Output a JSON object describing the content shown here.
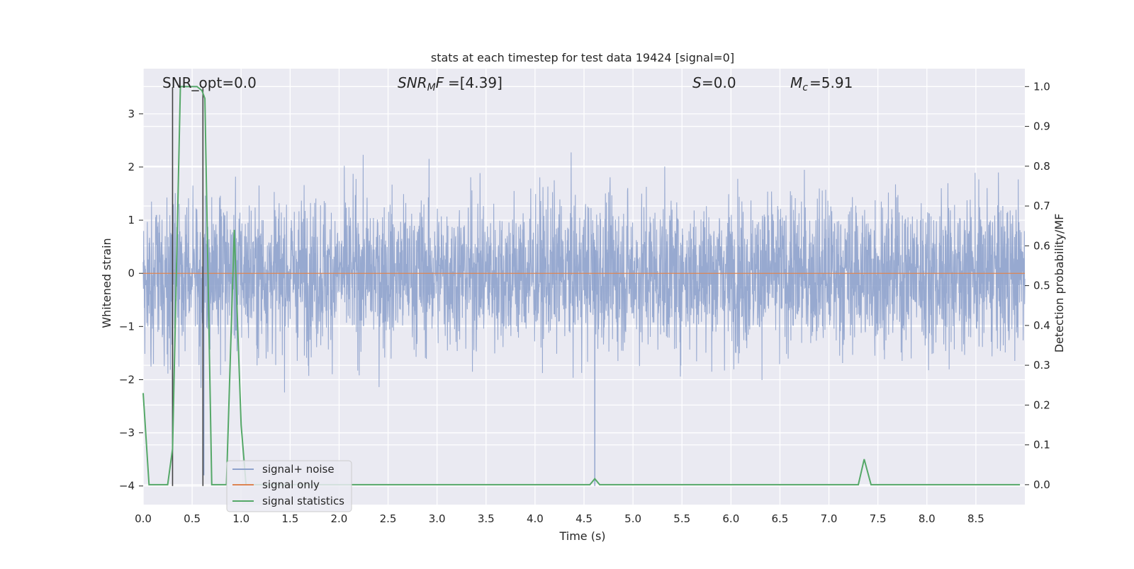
{
  "chart_data": {
    "type": "line",
    "title": "stats at each timestep for test data 19424 [signal=0]",
    "xlabel": "Time (s)",
    "ylabel": "Whitened strain",
    "ylabel_right": "Detection probability/MF",
    "xlim": [
      0,
      9.0
    ],
    "ylim": [
      -4.35,
      3.85
    ],
    "ylim_right": [
      -0.05,
      1.045
    ],
    "grid": true,
    "legend_position": "lower-left",
    "x_ticks": [
      "0.0",
      "0.5",
      "1.0",
      "1.5",
      "2.0",
      "2.5",
      "3.0",
      "3.5",
      "4.0",
      "4.5",
      "5.0",
      "5.5",
      "6.0",
      "6.5",
      "7.0",
      "7.5",
      "8.0",
      "8.5"
    ],
    "y_ticks": [
      "3",
      "2",
      "1",
      "0",
      "−1",
      "−2",
      "−3",
      "−4"
    ],
    "y_ticks_right": [
      "1.0",
      "0.9",
      "0.8",
      "0.7",
      "0.6",
      "0.5",
      "0.4",
      "0.3",
      "0.2",
      "0.1",
      "0.0"
    ],
    "annotations": {
      "snr_opt": "SNR_opt=0.0",
      "snr_mf": "=[4.39]",
      "s": "=0.0",
      "mc": "=5.91"
    },
    "colors": {
      "noise": "#8ea2cc",
      "signal": "#dd8452",
      "stats": "#55a868",
      "markers": "#444444",
      "background": "#eaeaf2"
    },
    "series": [
      {
        "name": "signal+ noise",
        "axis": "left",
        "description_seed": 19424,
        "spike_x": [
          4.61,
          0.62,
          0.3
        ],
        "spike_y": [
          -4.0,
          -3.8,
          -3.1
        ]
      },
      {
        "name": "signal only",
        "axis": "left",
        "x": [
          0,
          9.0
        ],
        "values": [
          0,
          0
        ]
      },
      {
        "name": "signal statistics",
        "axis": "right",
        "x": [
          0.0,
          0.06,
          0.25,
          0.3,
          0.38,
          0.45,
          0.55,
          0.6,
          0.63,
          0.7,
          0.78,
          0.85,
          0.93,
          1.0,
          1.05,
          1.2,
          4.5,
          4.56,
          4.61,
          4.66,
          7.3,
          7.36,
          7.43,
          7.5,
          8.95
        ],
        "values": [
          0.23,
          0.0,
          0.0,
          0.09,
          1.0,
          1.0,
          1.0,
          0.99,
          0.97,
          0.0,
          0.0,
          0.0,
          0.64,
          0.15,
          0.0,
          0.0,
          0.0,
          0.0,
          0.015,
          0.0,
          0.0,
          0.064,
          0.0,
          0.0,
          0.0
        ]
      }
    ],
    "vertical_markers_x": [
      0.3,
      0.61
    ]
  }
}
